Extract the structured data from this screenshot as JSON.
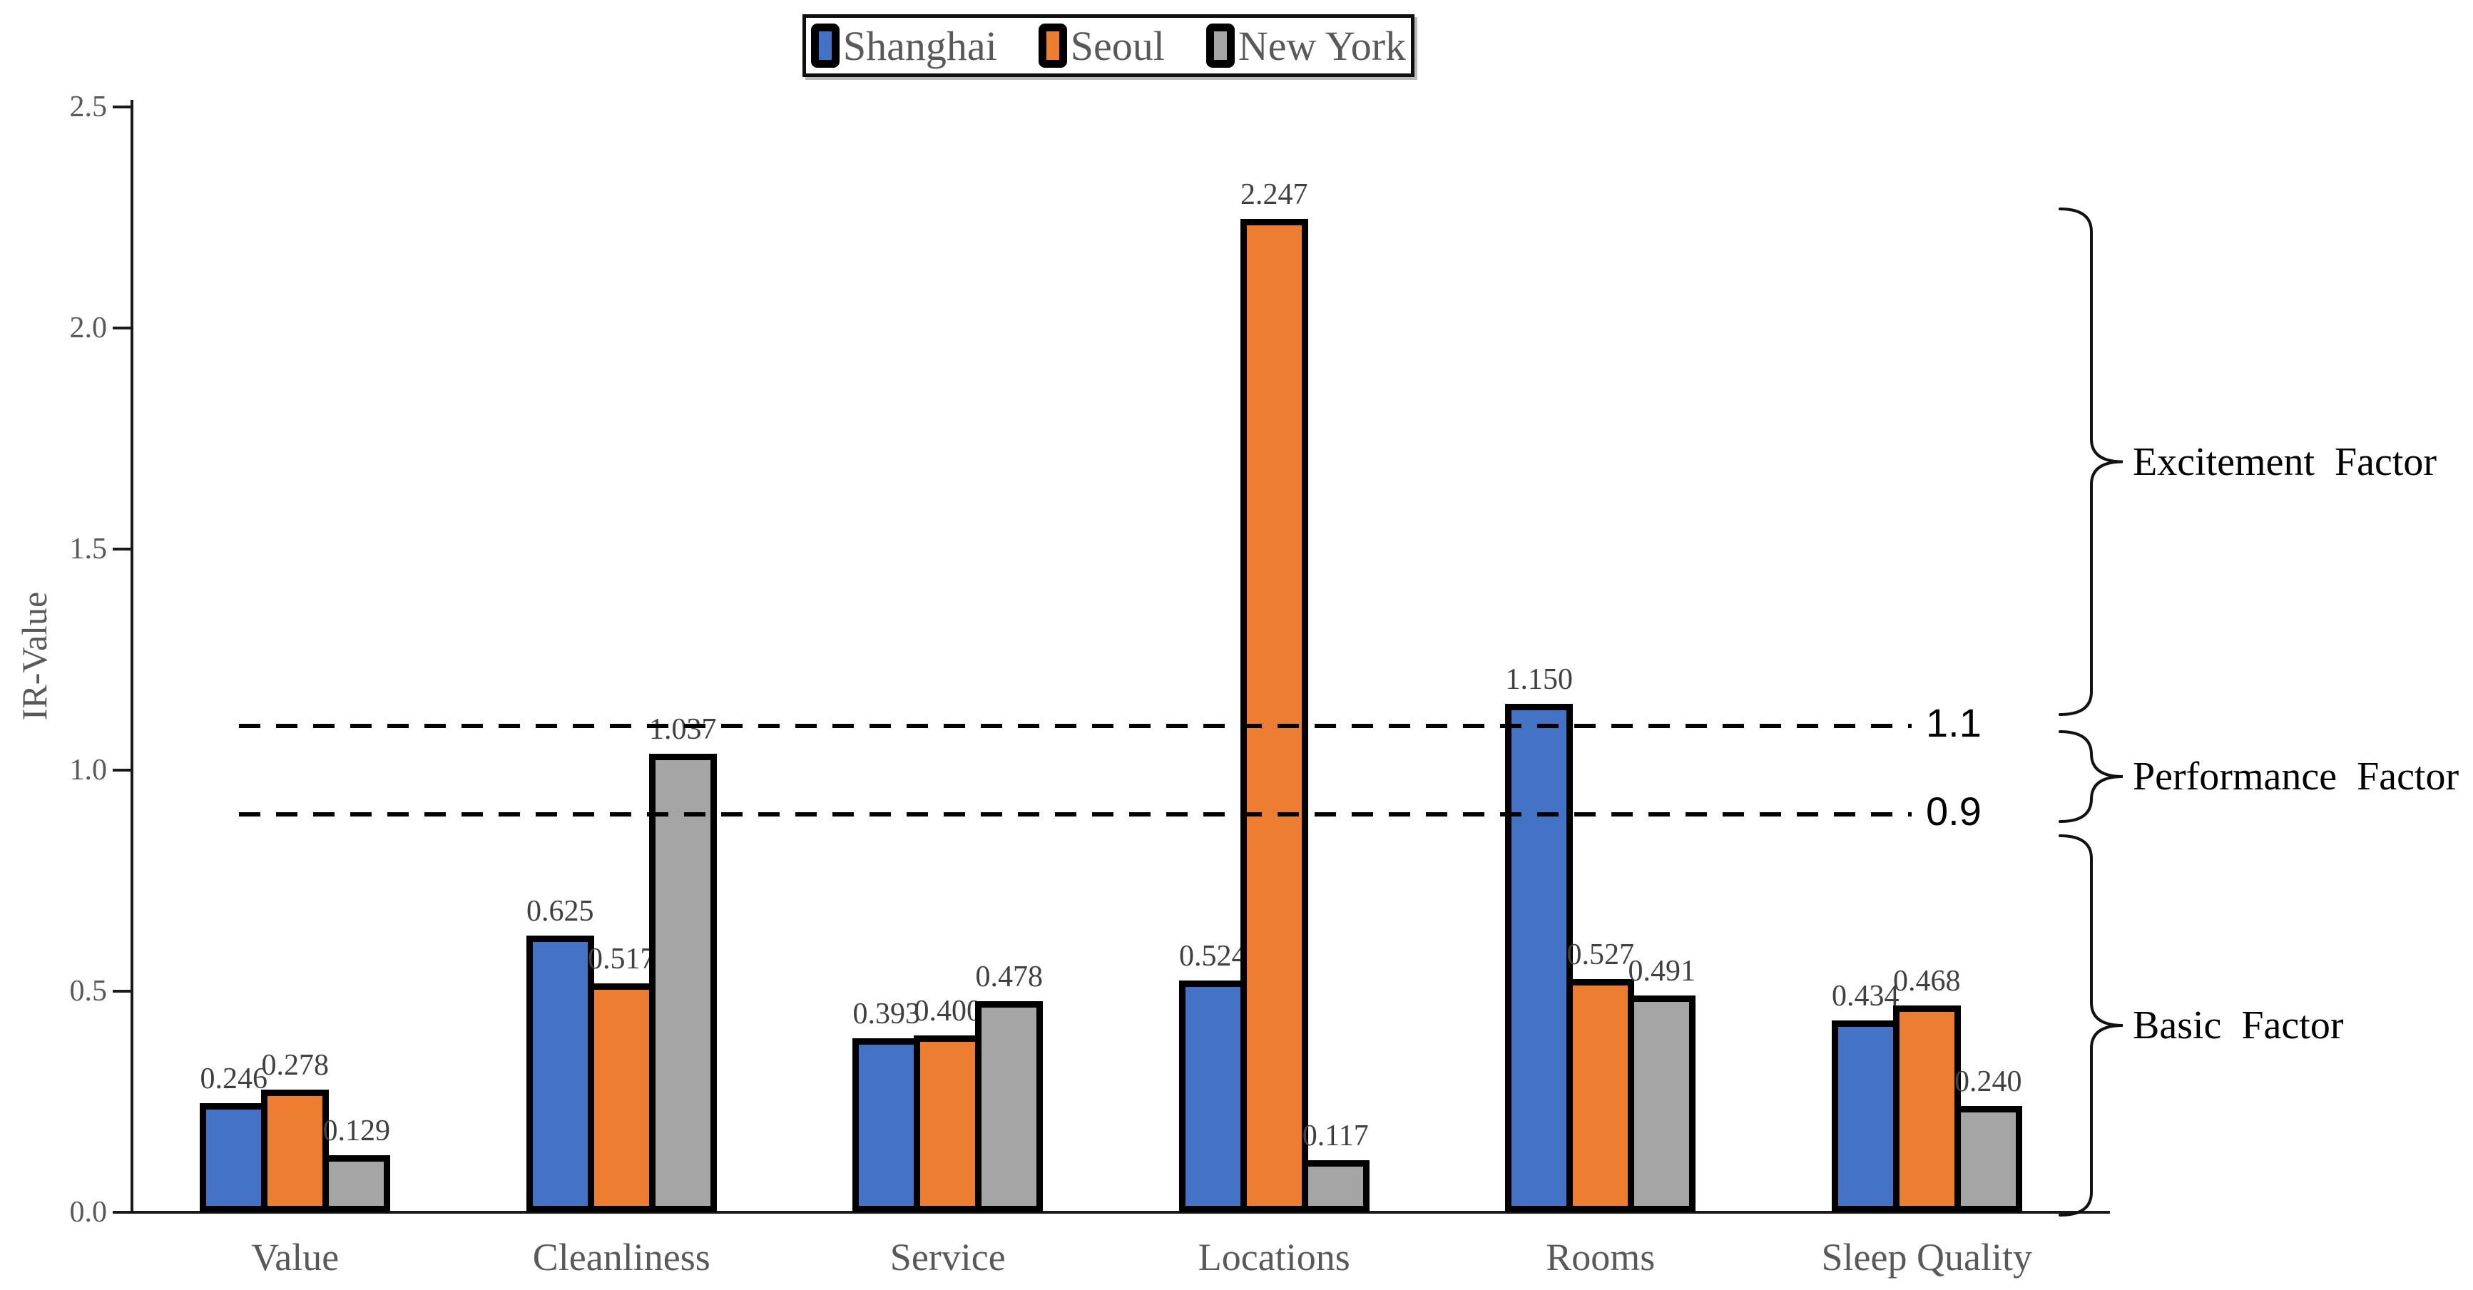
{
  "chart_data": {
    "type": "bar",
    "title": "",
    "categories": [
      "Value",
      "Cleanliness",
      "Service",
      "Locations",
      "Rooms",
      "Sleep Quality"
    ],
    "series": [
      {
        "name": "Shanghai",
        "color": "#4472C4",
        "values": [
          0.246,
          0.625,
          0.393,
          0.524,
          1.15,
          0.434
        ]
      },
      {
        "name": "Seoul",
        "color": "#ED7D31",
        "values": [
          0.278,
          0.517,
          0.4,
          2.247,
          0.527,
          0.468
        ]
      },
      {
        "name": "New York",
        "color": "#A5A5A5",
        "values": [
          0.129,
          1.037,
          0.478,
          0.117,
          0.491,
          0.24
        ]
      }
    ],
    "value_label_decimals": 3,
    "ylabel": "IR-Value",
    "ylim": [
      0,
      2.5
    ],
    "yticks": [
      "0.0",
      "0.5",
      "1.0",
      "1.5",
      "2.0",
      "2.5"
    ],
    "grid": false,
    "legend_position": "top-center",
    "bar_border_color": "#000000",
    "reference_lines": [
      {
        "value": 1.1,
        "label": "1.1",
        "style": "dashed",
        "color": "#000000"
      },
      {
        "value": 0.9,
        "label": "0.9",
        "style": "dashed",
        "color": "#000000"
      }
    ],
    "annotations": [
      {
        "text": "Excitement Factor",
        "range": [
          1.1,
          2.27
        ]
      },
      {
        "text": "Performance Factor",
        "range": [
          0.9,
          1.1
        ]
      },
      {
        "text": "Basic Factor",
        "range": [
          0.0,
          0.9
        ]
      }
    ]
  }
}
